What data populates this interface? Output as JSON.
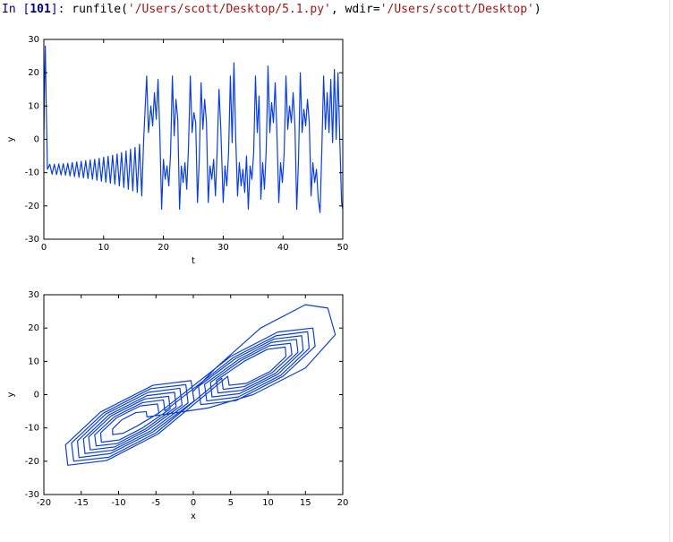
{
  "console": {
    "prompt": "In [",
    "number": "101",
    "prompt_end": "]: ",
    "call": "runfile(",
    "arg1": "'/Users/scott/Desktop/5.1.py'",
    "sep": ", wdir=",
    "arg2": "'/Users/scott/Desktop'",
    "close": ")"
  },
  "chart_data": [
    {
      "type": "line",
      "xlabel": "t",
      "ylabel": "y",
      "color": "#0b3fd9",
      "xlim": [
        0,
        50
      ],
      "xticks": [
        0,
        10,
        20,
        30,
        40,
        50
      ],
      "ylim": [
        -30,
        30
      ],
      "yticks": [
        -30,
        -20,
        -10,
        0,
        10,
        20,
        30
      ],
      "x": [
        0,
        0.1,
        0.25,
        0.4,
        0.6,
        1.0,
        1.375,
        1.75,
        2.125,
        2.5,
        2.875,
        3.25,
        3.625,
        4.0,
        4.375,
        4.75,
        5.125,
        5.5,
        5.875,
        6.25,
        6.625,
        7.0,
        7.375,
        7.75,
        8.125,
        8.5,
        8.875,
        9.25,
        9.625,
        10.0,
        10.375,
        10.75,
        11.125,
        11.5,
        11.875,
        12.25,
        12.625,
        13.0,
        13.375,
        13.75,
        14.125,
        14.5,
        14.875,
        15.25,
        15.625,
        16.0,
        16.375,
        16.7,
        17.2,
        17.5,
        17.9,
        18.2,
        18.5,
        18.8,
        19.1,
        19.4,
        19.7,
        20.0,
        20.3,
        20.6,
        20.9,
        21.2,
        21.5,
        21.8,
        22.1,
        22.4,
        22.7,
        23.0,
        23.3,
        23.6,
        23.9,
        24.2,
        24.5,
        24.8,
        25.1,
        25.4,
        25.7,
        26.0,
        26.3,
        26.6,
        26.9,
        27.2,
        27.5,
        27.8,
        28.1,
        28.4,
        28.7,
        29.0,
        29.3,
        29.6,
        30.0,
        30.3,
        30.6,
        30.9,
        31.2,
        31.5,
        31.8,
        32.1,
        32.4,
        32.7,
        33.0,
        33.3,
        33.6,
        33.9,
        34.2,
        34.5,
        34.8,
        35.1,
        35.4,
        35.7,
        36.0,
        36.3,
        36.6,
        36.9,
        37.2,
        37.5,
        37.8,
        38.1,
        38.4,
        38.7,
        39.0,
        39.3,
        39.6,
        39.9,
        40.2,
        40.5,
        40.8,
        41.1,
        41.4,
        41.7,
        42.0,
        42.3,
        42.6,
        42.9,
        43.2,
        43.5,
        43.8,
        44.1,
        44.4,
        44.7,
        45.0,
        45.3,
        45.6,
        45.9,
        46.2,
        46.5,
        46.8,
        47.1,
        47.4,
        47.7,
        48.0,
        48.3,
        48.6,
        48.9,
        49.2,
        49.5,
        49.8,
        50
      ],
      "values": [
        0,
        15,
        28,
        10,
        -9,
        -7.5,
        -10.5,
        -7.5,
        -10.6,
        -7.4,
        -10.7,
        -7.3,
        -10.8,
        -7.2,
        -11,
        -7,
        -11.2,
        -6.8,
        -11.4,
        -6.6,
        -11.6,
        -6.4,
        -11.8,
        -6.2,
        -12,
        -6,
        -12.3,
        -5.7,
        -12.6,
        -5.4,
        -12.9,
        -5.1,
        -13.2,
        -4.8,
        -13.5,
        -4.4,
        -14,
        -4,
        -14.5,
        -3.5,
        -15,
        -3,
        -15.5,
        -2.4,
        -16,
        -1.5,
        -17,
        0,
        19,
        2,
        10,
        4,
        14,
        6,
        18,
        2,
        -21,
        -6,
        -12,
        -8,
        -14,
        -4,
        19,
        1,
        12,
        6,
        -21,
        -8,
        -13,
        -7,
        -15,
        -2,
        19,
        2,
        8,
        5,
        -19,
        -6,
        17,
        3,
        12,
        5,
        -19,
        -8,
        -12,
        -6,
        -17,
        -3,
        15,
        3,
        -19,
        -8,
        -14,
        -4,
        19,
        -1,
        23,
        0,
        -17,
        -7,
        -14,
        -9,
        -16,
        -5,
        -21,
        -8,
        -12,
        -4,
        19,
        2,
        13,
        -18,
        -7,
        -15,
        -3,
        22,
        2,
        11,
        5,
        17,
        1,
        -19,
        -7,
        -13,
        -4,
        19,
        3,
        10,
        5,
        14,
        4,
        -21,
        -6,
        20,
        2,
        9,
        4,
        12,
        5,
        -17,
        -7,
        -13,
        -9,
        -18,
        -22,
        -3,
        19,
        3,
        14,
        2,
        18,
        -1,
        21,
        0,
        20,
        0,
        -19,
        -21
      ]
    },
    {
      "type": "line",
      "xlabel": "x",
      "ylabel": "y",
      "color": "#0b3fd9",
      "xlim": [
        -20,
        20
      ],
      "xticks": [
        -20,
        -15,
        -10,
        -5,
        0,
        5,
        10,
        15,
        20
      ],
      "ylim": [
        -30,
        30
      ],
      "yticks": [
        -30,
        -20,
        -10,
        0,
        10,
        20,
        30
      ],
      "x": [
        0,
        3,
        9,
        15,
        18,
        19,
        15,
        8,
        2,
        -6.2,
        -6.3,
        -7.7,
        -9.6,
        -10.8,
        -10.8,
        -9.4,
        -7.5,
        -4.6,
        -4.8,
        -7.1,
        -10.3,
        -12.4,
        -12.3,
        -9.9,
        -6.8,
        -3.1,
        -3.3,
        -6.5,
        -11.0,
        -14.0,
        -13.8,
        -10.5,
        -6.1,
        -1.5,
        -1.8,
        -6.0,
        -11.7,
        -15.5,
        -15.3,
        -11.1,
        -5.4,
        0.1,
        -0.3,
        -5.4,
        -12.4,
        -17.1,
        -16.8,
        -11.6,
        -4.7,
        4.6,
        4.8,
        7.1,
        10.3,
        12.4,
        12.3,
        9.9,
        6.8,
        3.1,
        3.3,
        6.5,
        11.0,
        14.0,
        13.8,
        10.5,
        6.1,
        1.5,
        1.8,
        6.0,
        11.7,
        15.5,
        15.3,
        11.1,
        5.4,
        -3.8,
        -4.0,
        -6.8,
        -10.6,
        -13.2,
        -13.0,
        -10.2,
        -6.4,
        -2.3,
        -2.5,
        -6.2,
        -11.3,
        -14.7,
        -14.5,
        -10.8,
        -5.7,
        -0.7,
        -1.0,
        -5.7,
        -12.0,
        -16.3,
        -16.0,
        -11.3,
        -5.0,
        3.8,
        4.0,
        6.8,
        10.6,
        13.2,
        13.0,
        10.2,
        6.4,
        2.3,
        2.5,
        6.2,
        11.3,
        14.7,
        14.5,
        10.8,
        5.7,
        0.7,
        1.0,
        5.7,
        12.0,
        16.3,
        16.0,
        11.3,
        5.0,
        -4.6,
        -4.8,
        -7.1,
        -10.3,
        -12.4,
        -12.3,
        -9.9,
        -6.8,
        -3.1,
        -3.3,
        -6.5,
        -11.0,
        -14.0,
        -13.8,
        -10.5,
        -6.1,
        -1.5,
        -1.8,
        -6.0,
        -11.7,
        -15.5,
        -15.3,
        -11.1,
        -5.4,
        0.1,
        -0.3,
        -5.4,
        -12.4,
        -17.1,
        -16.8,
        -11.6,
        -4.7
      ],
      "values": [
        1,
        8,
        20,
        27,
        26,
        18,
        8,
        0,
        -4,
        -6.7,
        -5.1,
        -5.4,
        -7.6,
        -10.3,
        -12.0,
        -11.6,
        -9.4,
        -5.5,
        -2.8,
        -3.4,
        -7.0,
        -11.5,
        -14.3,
        -13.6,
        -10.0,
        -4.3,
        -0.5,
        -1.3,
        -6.4,
        -12.7,
        -16.6,
        -15.7,
        -10.6,
        -3.1,
        1.9,
        0.7,
        -5.8,
        -13.9,
        -18.9,
        -17.7,
        -11.2,
        -1.9,
        4.2,
        2.8,
        -5.2,
        -15.1,
        -21.2,
        -19.8,
        -11.8,
        5.5,
        2.8,
        3.4,
        7.0,
        11.5,
        14.3,
        13.6,
        10.0,
        4.3,
        0.5,
        1.3,
        6.4,
        12.7,
        16.6,
        15.7,
        10.6,
        3.1,
        -1.9,
        -0.7,
        5.8,
        13.9,
        18.9,
        17.7,
        11.2,
        -4.9,
        -1.6,
        -2.4,
        -6.7,
        -12.1,
        -15.4,
        -14.7,
        -10.3,
        -3.7,
        0.7,
        -0.3,
        -6.1,
        -13.3,
        -17.7,
        -16.7,
        -10.9,
        -2.5,
        3.0,
        1.8,
        -5.5,
        -14.5,
        -20.0,
        -18.8,
        -11.5,
        4.9,
        1.6,
        2.4,
        6.7,
        12.1,
        15.4,
        14.7,
        10.3,
        3.7,
        -0.7,
        0.3,
        6.1,
        13.3,
        17.7,
        16.7,
        10.9,
        2.5,
        -3.0,
        -1.8,
        5.5,
        14.5,
        20.0,
        18.8,
        11.5,
        -5.5,
        -2.8,
        -3.4,
        -7.0,
        -11.5,
        -14.3,
        -13.6,
        -10.0,
        -4.3,
        -0.5,
        -1.3,
        -6.4,
        -12.7,
        -16.6,
        -15.7,
        -10.6,
        -3.1,
        1.9,
        0.7,
        -5.8,
        -13.9,
        -18.9,
        -17.7,
        -11.2,
        -1.9,
        4.2,
        2.8,
        -5.2,
        -15.1,
        -21.2,
        -19.8,
        -11.8
      ]
    }
  ]
}
